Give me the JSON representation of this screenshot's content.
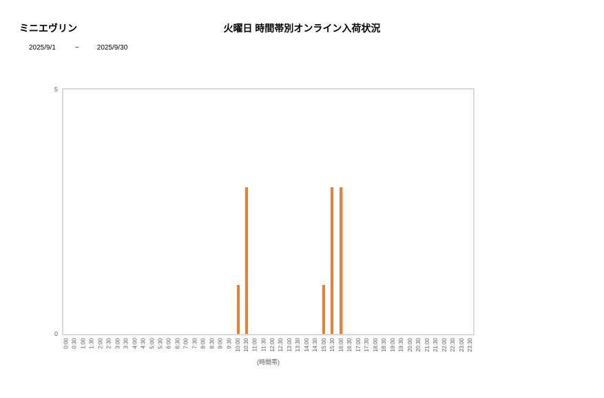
{
  "header": {
    "product_name": "ミニエヴリン",
    "date_start": "2025/9/1",
    "date_separator": "~",
    "date_end": "2025/9/30"
  },
  "chart_data": {
    "type": "bar",
    "title": "火曜日 時間帯別オンライン入荷状況",
    "xlabel": "(時間帯)",
    "ylabel": "",
    "ylim": [
      0,
      5
    ],
    "yticks": [
      0,
      5
    ],
    "grid": false,
    "legend": false,
    "bar_color": "#ED7D31",
    "plot_border_color": "#D9D9D9",
    "tick_label_color": "#595959",
    "categories": [
      "0:00",
      "0:30",
      "1:00",
      "1:30",
      "2:00",
      "2:30",
      "3:00",
      "3:30",
      "4:00",
      "4:30",
      "5:00",
      "5:30",
      "6:00",
      "6:30",
      "7:00",
      "7:30",
      "8:00",
      "8:30",
      "9:00",
      "9:30",
      "10:00",
      "10:30",
      "11:00",
      "11:30",
      "12:00",
      "12:30",
      "13:00",
      "13:30",
      "14:00",
      "14:30",
      "15:00",
      "15:30",
      "16:00",
      "16:30",
      "17:00",
      "17:30",
      "18:00",
      "18:30",
      "19:00",
      "19:30",
      "20:00",
      "20:30",
      "21:00",
      "21:30",
      "22:00",
      "22:30",
      "23:00",
      "23:30"
    ],
    "values": [
      0,
      0,
      0,
      0,
      0,
      0,
      0,
      0,
      0,
      0,
      0,
      0,
      0,
      0,
      0,
      0,
      0,
      0,
      0,
      0,
      1,
      3,
      0,
      0,
      0,
      0,
      0,
      0,
      0,
      0,
      1,
      3,
      3,
      0,
      0,
      0,
      0,
      0,
      0,
      0,
      0,
      0,
      0,
      0,
      0,
      0,
      0,
      0
    ]
  }
}
